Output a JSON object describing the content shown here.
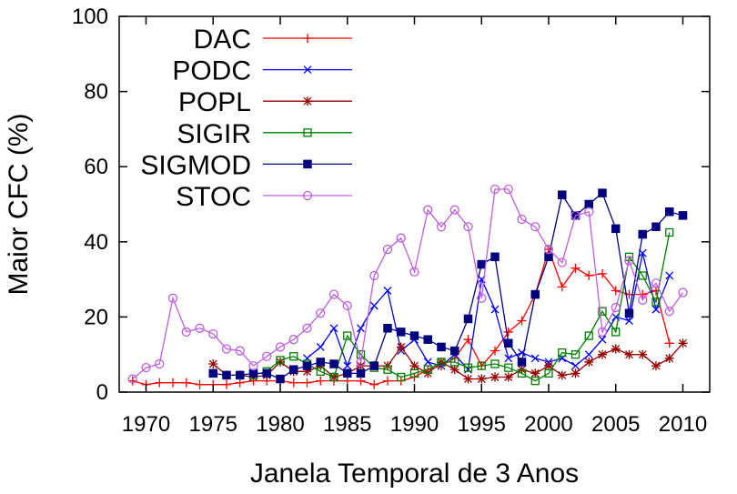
{
  "chart_data": {
    "type": "line",
    "xlabel": "Janela Temporal de 3 Anos",
    "ylabel": "Maior CFC (%)",
    "xlim": [
      1968,
      2012
    ],
    "ylim": [
      0,
      100
    ],
    "xticks": [
      1970,
      1975,
      1980,
      1985,
      1990,
      1995,
      2000,
      2005,
      2010
    ],
    "yticks": [
      0,
      20,
      40,
      60,
      80,
      100
    ],
    "grid": false,
    "legend_position": "top-left",
    "series": [
      {
        "name": "DAC",
        "color": "#ff0000",
        "marker": "plus",
        "x": [
          1969,
          1970,
          1971,
          1972,
          1973,
          1974,
          1975,
          1976,
          1977,
          1978,
          1979,
          1980,
          1981,
          1982,
          1983,
          1984,
          1985,
          1986,
          1987,
          1988,
          1989,
          1990,
          1991,
          1992,
          1993,
          1994,
          1995,
          1996,
          1997,
          1998,
          1999,
          2000,
          2001,
          2002,
          2003,
          2004,
          2005,
          2006,
          2007,
          2008,
          2009
        ],
        "y": [
          3,
          2,
          2.5,
          2.5,
          2.5,
          2,
          2,
          2,
          2.5,
          3,
          3,
          3,
          2.5,
          2.5,
          3,
          3,
          3,
          3,
          2,
          3,
          3,
          4,
          6,
          7,
          9,
          14,
          7,
          11,
          16,
          19,
          26,
          38,
          28,
          33,
          31,
          31.5,
          27,
          26,
          26,
          27,
          13
        ]
      },
      {
        "name": "PODC",
        "color": "#0000ff",
        "marker": "x",
        "x": [
          1982,
          1983,
          1984,
          1985,
          1986,
          1987,
          1988,
          1989,
          1990,
          1991,
          1992,
          1993,
          1994,
          1995,
          1996,
          1997,
          1998,
          1999,
          2000,
          2001,
          2002,
          2003,
          2004,
          2005,
          2006,
          2007,
          2008,
          2009
        ],
        "y": [
          9,
          12,
          17,
          7,
          17,
          23,
          27,
          11,
          14,
          8,
          7,
          10,
          6,
          30,
          22,
          9,
          10.5,
          9,
          8,
          9,
          7,
          10,
          14,
          20,
          19,
          37,
          22,
          31
        ]
      },
      {
        "name": "POPL",
        "color": "#990000",
        "marker": "star",
        "x": [
          1975,
          1976,
          1977,
          1978,
          1979,
          1980,
          1981,
          1982,
          1983,
          1984,
          1985,
          1986,
          1987,
          1988,
          1989,
          1990,
          1991,
          1992,
          1993,
          1994,
          1995,
          1996,
          1997,
          1998,
          1999,
          2000,
          2001,
          2002,
          2003,
          2004,
          2005,
          2006,
          2007,
          2008,
          2009,
          2010
        ],
        "y": [
          7.5,
          4.5,
          4.5,
          4,
          4.5,
          8,
          5.5,
          5.5,
          7,
          4,
          5,
          7,
          7,
          7,
          12,
          7,
          5,
          8,
          6,
          3.5,
          3.5,
          4,
          4,
          6,
          5,
          7,
          4.5,
          5,
          8,
          10,
          11.5,
          10,
          10,
          7,
          9,
          13
        ]
      },
      {
        "name": "SIGIR",
        "color": "#007f00",
        "marker": "square-open",
        "x": [
          1978,
          1979,
          1980,
          1981,
          1982,
          1983,
          1984,
          1985,
          1986,
          1987,
          1988,
          1989,
          1990,
          1991,
          1992,
          1993,
          1994,
          1995,
          1996,
          1997,
          1998,
          1999,
          2000,
          2001,
          2002,
          2003,
          2004,
          2005,
          2006,
          2007,
          2008,
          2009
        ],
        "y": [
          4.5,
          5.5,
          8.5,
          9.5,
          7.5,
          5.5,
          4,
          15,
          10,
          6.5,
          6,
          4,
          5,
          6,
          8,
          8,
          6.5,
          7,
          7.5,
          6.5,
          5,
          3,
          5,
          10.5,
          10,
          15,
          21.5,
          16,
          36,
          31,
          24,
          42.5
        ]
      },
      {
        "name": "SIGMOD",
        "color": "#00007f",
        "marker": "square-filled",
        "x": [
          1975,
          1976,
          1977,
          1978,
          1979,
          1980,
          1981,
          1982,
          1983,
          1984,
          1985,
          1986,
          1987,
          1988,
          1989,
          1990,
          1991,
          1992,
          1993,
          1994,
          1995,
          1996,
          1997,
          1998,
          1999,
          2000,
          2001,
          2002,
          2003,
          2004,
          2005,
          2006,
          2007,
          2008,
          2009,
          2010
        ],
        "y": [
          5,
          4.5,
          4.5,
          5,
          5,
          3.5,
          6,
          7,
          8,
          7.5,
          5,
          5,
          7,
          17,
          16,
          15,
          14,
          12,
          11,
          19.5,
          34,
          36,
          13,
          8,
          26,
          36,
          52.5,
          47,
          50,
          53,
          43.5,
          21,
          42,
          44,
          48,
          47
        ]
      },
      {
        "name": "STOC",
        "color": "#bf5fdf",
        "marker": "circle-open",
        "x": [
          1969,
          1970,
          1971,
          1972,
          1973,
          1974,
          1975,
          1976,
          1977,
          1978,
          1979,
          1980,
          1981,
          1982,
          1983,
          1984,
          1985,
          1986,
          1987,
          1988,
          1989,
          1990,
          1991,
          1992,
          1993,
          1994,
          1995,
          1996,
          1997,
          1998,
          1999,
          2000,
          2001,
          2002,
          2003,
          2004,
          2005,
          2006,
          2007,
          2008,
          2009,
          2010
        ],
        "y": [
          3.5,
          6.5,
          7.5,
          25,
          16,
          17,
          15.5,
          11.5,
          11,
          7,
          9.5,
          12,
          14,
          17,
          21,
          26,
          23,
          8,
          31,
          38,
          41,
          32,
          48.5,
          44,
          48.5,
          44,
          25,
          54,
          54,
          46,
          44,
          38,
          34.5,
          47,
          48,
          16,
          22.5,
          35,
          24.5,
          29,
          21.5,
          26.5
        ]
      }
    ]
  }
}
